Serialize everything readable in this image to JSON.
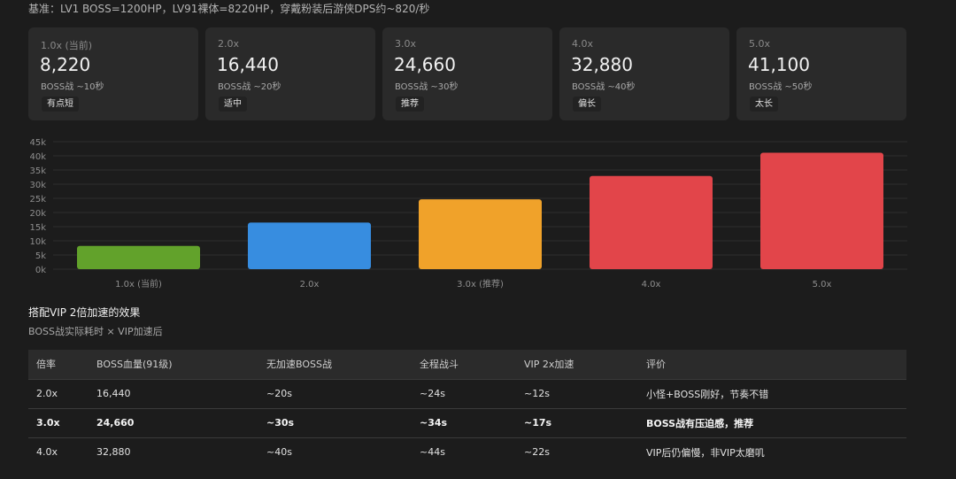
{
  "baseline": "基准：LV1 BOSS=1200HP，LV91裸体=8220HP，穿戴粉装后游侠DPS约~820/秒",
  "cards": [
    {
      "label": "1.0x (当前)",
      "value": "8,220",
      "sub": "BOSS战 ~10秒",
      "tag": "有点短"
    },
    {
      "label": "2.0x",
      "value": "16,440",
      "sub": "BOSS战 ~20秒",
      "tag": "适中"
    },
    {
      "label": "3.0x",
      "value": "24,660",
      "sub": "BOSS战 ~30秒",
      "tag": "推荐"
    },
    {
      "label": "4.0x",
      "value": "32,880",
      "sub": "BOSS战 ~40秒",
      "tag": "偏长"
    },
    {
      "label": "5.0x",
      "value": "41,100",
      "sub": "BOSS战 ~50秒",
      "tag": "太长"
    }
  ],
  "chart_data": {
    "type": "bar",
    "categories": [
      "1.0x (当前)",
      "2.0x",
      "3.0x (推荐)",
      "4.0x",
      "5.0x"
    ],
    "values": [
      8220,
      16440,
      24660,
      32880,
      41100
    ],
    "colors": [
      "#62a22b",
      "#378de0",
      "#f0a22a",
      "#e2454a",
      "#e2454a"
    ],
    "ylim": [
      0,
      45000
    ],
    "yticks": [
      0,
      5000,
      10000,
      15000,
      20000,
      25000,
      30000,
      35000,
      40000,
      45000
    ],
    "ytick_labels": [
      "0k",
      "5k",
      "10k",
      "15k",
      "20k",
      "25k",
      "30k",
      "35k",
      "40k",
      "45k"
    ],
    "grid": true,
    "legend": "none"
  },
  "section": {
    "title": "搭配VIP 2倍加速的效果",
    "subtitle": "BOSS战实际耗时 × VIP加速后"
  },
  "table": {
    "headers": [
      "倍率",
      "BOSS血量(91级)",
      "无加速BOSS战",
      "全程战斗",
      "VIP 2x加速",
      "评价"
    ],
    "rows": [
      {
        "bold": false,
        "cells": [
          "2.0x",
          "16,440",
          "~20s",
          "~24s",
          "~12s",
          "小怪+BOSS刚好，节奏不错"
        ]
      },
      {
        "bold": true,
        "cells": [
          "3.0x",
          "24,660",
          "~30s",
          "~34s",
          "~17s",
          "BOSS战有压迫感，推荐"
        ]
      },
      {
        "bold": false,
        "cells": [
          "4.0x",
          "32,880",
          "~40s",
          "~44s",
          "~22s",
          "VIP后仍偏慢，非VIP太磨叽"
        ]
      }
    ]
  }
}
